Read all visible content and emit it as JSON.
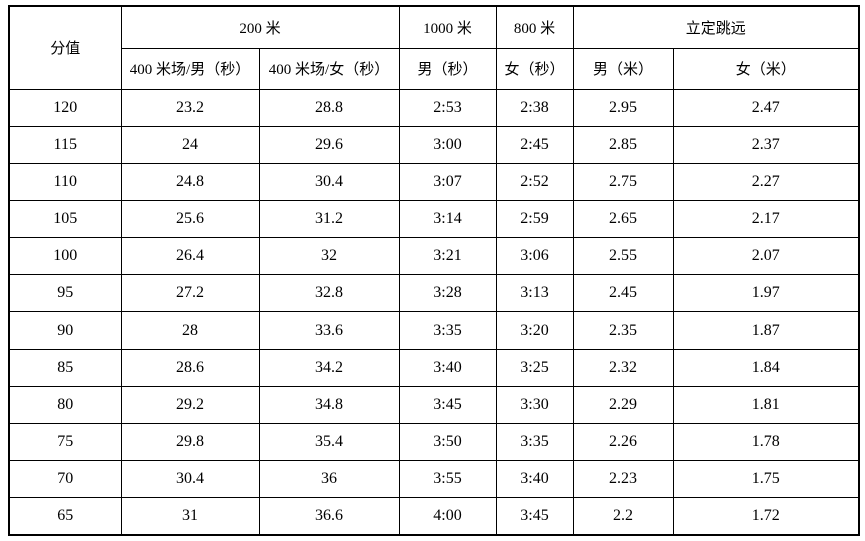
{
  "table": {
    "corner_header": "分值",
    "groups": [
      {
        "label": "200 米"
      },
      {
        "label": "1000 米"
      },
      {
        "label": "800 米"
      },
      {
        "label": "立定跳远"
      }
    ],
    "sub_headers": [
      "400 米场/男（秒）",
      "400 米场/女（秒）",
      "男（秒）",
      "女（秒）",
      "男（米）",
      "女（米）"
    ],
    "rows": [
      [
        "120",
        "23.2",
        "28.8",
        "2:53",
        "2:38",
        "2.95",
        "2.47"
      ],
      [
        "115",
        "24",
        "29.6",
        "3:00",
        "2:45",
        "2.85",
        "2.37"
      ],
      [
        "110",
        "24.8",
        "30.4",
        "3:07",
        "2:52",
        "2.75",
        "2.27"
      ],
      [
        "105",
        "25.6",
        "31.2",
        "3:14",
        "2:59",
        "2.65",
        "2.17"
      ],
      [
        "100",
        "26.4",
        "32",
        "3:21",
        "3:06",
        "2.55",
        "2.07"
      ],
      [
        "95",
        "27.2",
        "32.8",
        "3:28",
        "3:13",
        "2.45",
        "1.97"
      ],
      [
        "90",
        "28",
        "33.6",
        "3:35",
        "3:20",
        "2.35",
        "1.87"
      ],
      [
        "85",
        "28.6",
        "34.2",
        "3:40",
        "3:25",
        "2.32",
        "1.84"
      ],
      [
        "80",
        "29.2",
        "34.8",
        "3:45",
        "3:30",
        "2.29",
        "1.81"
      ],
      [
        "75",
        "29.8",
        "35.4",
        "3:50",
        "3:35",
        "2.26",
        "1.78"
      ],
      [
        "70",
        "30.4",
        "36",
        "3:55",
        "3:40",
        "2.23",
        "1.75"
      ],
      [
        "65",
        "31",
        "36.6",
        "4:00",
        "3:45",
        "2.2",
        "1.72"
      ]
    ]
  }
}
